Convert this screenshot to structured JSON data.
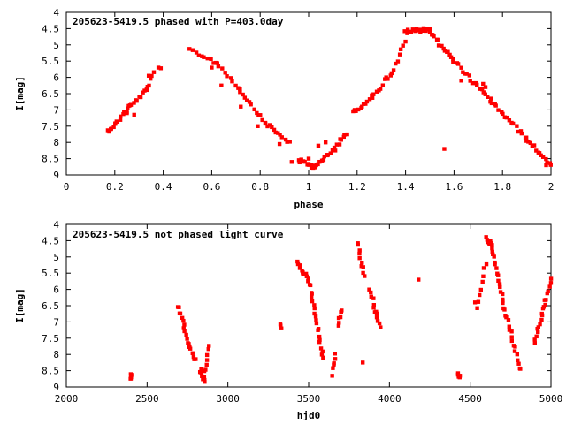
{
  "chart_data": [
    {
      "type": "scatter",
      "title": "205623-5419.5 phased with P=403.0day",
      "xlabel": "phase",
      "ylabel": "I[mag]",
      "xlim": [
        0,
        2
      ],
      "ylim": [
        9,
        4
      ],
      "y_inverted": true,
      "xticks": [
        "0",
        "0.2",
        "0.4",
        "0.6",
        "0.8",
        "1",
        "1.2",
        "1.4",
        "1.6",
        "1.8",
        "2"
      ],
      "yticks": [
        "4",
        "4.5",
        "5",
        "5.5",
        "6",
        "6.5",
        "7",
        "7.5",
        "8",
        "8.5",
        "9"
      ],
      "grid": false,
      "marker_color": "#ff0000",
      "segments": [
        {
          "x0": 0.17,
          "x1": 0.2,
          "y0": 7.65,
          "y1": 7.45,
          "n": 6
        },
        {
          "x0": 0.2,
          "x1": 0.26,
          "y0": 7.45,
          "y1": 6.9,
          "n": 10
        },
        {
          "x0": 0.26,
          "x1": 0.33,
          "y0": 6.9,
          "y1": 6.4,
          "n": 10
        },
        {
          "x0": 0.33,
          "x1": 0.36,
          "y0": 6.4,
          "y1": 5.9,
          "n": 6
        },
        {
          "x0": 0.51,
          "x1": 0.62,
          "y0": 5.15,
          "y1": 5.55,
          "n": 10
        },
        {
          "x0": 0.62,
          "x1": 0.72,
          "y0": 5.55,
          "y1": 6.4,
          "n": 10
        },
        {
          "x0": 0.72,
          "x1": 0.82,
          "y0": 6.4,
          "y1": 7.4,
          "n": 12
        },
        {
          "x0": 0.82,
          "x1": 0.92,
          "y0": 7.4,
          "y1": 8.0,
          "n": 12
        },
        {
          "x0": 0.96,
          "x1": 1.02,
          "y0": 8.55,
          "y1": 8.75,
          "n": 12
        },
        {
          "x0": 1.02,
          "x1": 1.08,
          "y0": 8.75,
          "y1": 8.4,
          "n": 10
        },
        {
          "x0": 1.08,
          "x1": 1.16,
          "y0": 8.4,
          "y1": 7.7,
          "n": 10
        },
        {
          "x0": 1.18,
          "x1": 1.26,
          "y0": 7.1,
          "y1": 6.6,
          "n": 10
        },
        {
          "x0": 1.26,
          "x1": 1.34,
          "y0": 6.6,
          "y1": 5.9,
          "n": 8
        },
        {
          "x0": 1.34,
          "x1": 1.4,
          "y0": 5.9,
          "y1": 4.9,
          "n": 8
        },
        {
          "x0": 1.4,
          "x1": 1.5,
          "y0": 4.6,
          "y1": 4.5,
          "n": 18
        },
        {
          "x0": 1.5,
          "x1": 1.6,
          "y0": 4.6,
          "y1": 5.5,
          "n": 16
        },
        {
          "x0": 1.6,
          "x1": 1.75,
          "y0": 5.5,
          "y1": 6.7,
          "n": 18
        },
        {
          "x0": 1.75,
          "x1": 1.9,
          "y0": 6.7,
          "y1": 7.9,
          "n": 18
        },
        {
          "x0": 1.9,
          "x1": 2.0,
          "y0": 7.9,
          "y1": 8.7,
          "n": 14
        }
      ],
      "points": [
        [
          0.25,
          7.1
        ],
        [
          0.28,
          7.15
        ],
        [
          0.38,
          5.7
        ],
        [
          0.39,
          5.72
        ],
        [
          0.34,
          5.95
        ],
        [
          0.6,
          5.7
        ],
        [
          0.64,
          6.25
        ],
        [
          0.72,
          6.9
        ],
        [
          0.79,
          7.5
        ],
        [
          0.88,
          8.05
        ],
        [
          0.93,
          8.6
        ],
        [
          1.0,
          8.5
        ],
        [
          1.04,
          8.1
        ],
        [
          1.07,
          8.0
        ],
        [
          1.11,
          8.25
        ],
        [
          1.13,
          7.9
        ],
        [
          1.19,
          7.0
        ],
        [
          1.22,
          6.9
        ],
        [
          1.29,
          6.4
        ],
        [
          1.32,
          6.0
        ],
        [
          1.56,
          8.2
        ],
        [
          1.63,
          6.1
        ],
        [
          1.72,
          6.2
        ],
        [
          1.73,
          6.3
        ],
        [
          1.98,
          8.7
        ]
      ]
    },
    {
      "type": "scatter",
      "title": "205623-5419.5 not phased light curve",
      "xlabel": "hjd0",
      "ylabel": "I[mag]",
      "xlim": [
        2000,
        5000
      ],
      "ylim": [
        9,
        4
      ],
      "y_inverted": true,
      "xticks": [
        "2000",
        "2500",
        "3000",
        "3500",
        "4000",
        "4500",
        "5000"
      ],
      "yticks": [
        "4",
        "4.5",
        "5",
        "5.5",
        "6",
        "6.5",
        "7",
        "7.5",
        "8",
        "8.5",
        "9"
      ],
      "grid": false,
      "marker_color": "#ff0000",
      "segments": [
        {
          "x0": 2395,
          "x1": 2400,
          "y0": 8.6,
          "y1": 8.75,
          "n": 5
        },
        {
          "x0": 2695,
          "x1": 2760,
          "y0": 6.5,
          "y1": 7.8,
          "n": 14
        },
        {
          "x0": 2760,
          "x1": 2800,
          "y0": 7.8,
          "y1": 8.2,
          "n": 6
        },
        {
          "x0": 2830,
          "x1": 2855,
          "y0": 8.5,
          "y1": 8.9,
          "n": 8
        },
        {
          "x0": 2855,
          "x1": 2885,
          "y0": 8.7,
          "y1": 7.7,
          "n": 8
        },
        {
          "x0": 3320,
          "x1": 3330,
          "y0": 7.1,
          "y1": 7.2,
          "n": 3
        },
        {
          "x0": 3430,
          "x1": 3500,
          "y0": 5.2,
          "y1": 5.7,
          "n": 12
        },
        {
          "x0": 3500,
          "x1": 3590,
          "y0": 5.7,
          "y1": 8.1,
          "n": 22
        },
        {
          "x0": 3640,
          "x1": 3665,
          "y0": 8.6,
          "y1": 8.0,
          "n": 6
        },
        {
          "x0": 3680,
          "x1": 3705,
          "y0": 7.1,
          "y1": 6.6,
          "n": 6
        },
        {
          "x0": 3800,
          "x1": 3845,
          "y0": 4.55,
          "y1": 5.6,
          "n": 10
        },
        {
          "x0": 3880,
          "x1": 3940,
          "y0": 6.0,
          "y1": 7.2,
          "n": 12
        },
        {
          "x0": 4420,
          "x1": 4440,
          "y0": 8.55,
          "y1": 8.75,
          "n": 6
        },
        {
          "x0": 4540,
          "x1": 4595,
          "y0": 6.6,
          "y1": 5.2,
          "n": 8
        },
        {
          "x0": 4595,
          "x1": 4640,
          "y0": 4.4,
          "y1": 4.7,
          "n": 10
        },
        {
          "x0": 4640,
          "x1": 4700,
          "y0": 4.8,
          "y1": 6.3,
          "n": 14
        },
        {
          "x0": 4700,
          "x1": 4810,
          "y0": 6.3,
          "y1": 8.5,
          "n": 20
        },
        {
          "x0": 4900,
          "x1": 4960,
          "y0": 7.7,
          "y1": 6.5,
          "n": 12
        },
        {
          "x0": 4960,
          "x1": 5000,
          "y0": 6.5,
          "y1": 5.7,
          "n": 8
        }
      ],
      "points": [
        [
          4180,
          5.7
        ],
        [
          3835,
          8.25
        ],
        [
          3700,
          6.7
        ],
        [
          3910,
          6.7
        ],
        [
          4530,
          6.4
        ]
      ]
    }
  ]
}
